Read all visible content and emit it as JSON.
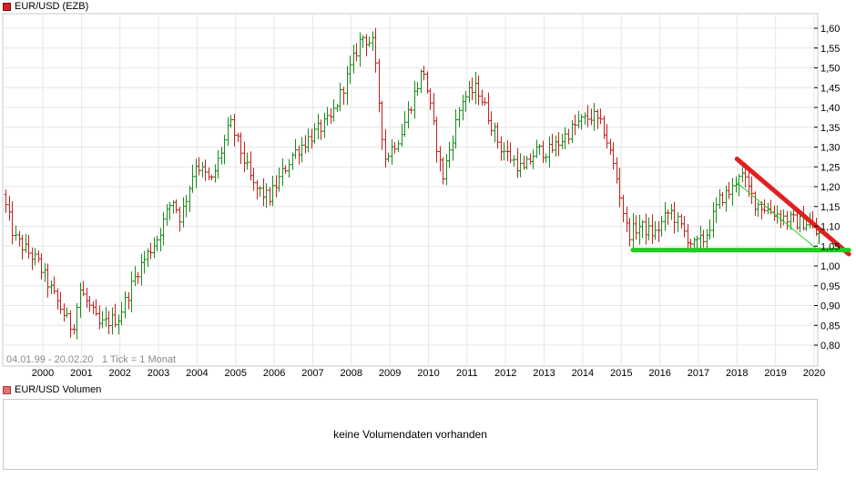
{
  "legend": {
    "price_label": "EUR/USD (EZB)",
    "volume_label": "EUR/USD Volumen"
  },
  "info": {
    "range_text": "04.01.99 - 20.02.20",
    "tick_text": "1 Tick = 1 Monat"
  },
  "volume": {
    "message": "keine Volumendaten vorhanden"
  },
  "colors": {
    "up": "#1a8c1a",
    "down": "#c81e1e",
    "trend_down": "#e02020",
    "trend_support": "#22cc22",
    "grid": "#e6e6e6",
    "frame": "#c8c8c8"
  },
  "chart_data": {
    "type": "ohlc",
    "title": "EUR/USD (EZB)",
    "interval": "monthly",
    "x_ticks": [
      "2000",
      "2001",
      "2002",
      "2003",
      "2004",
      "2005",
      "2006",
      "2007",
      "2008",
      "2009",
      "2010",
      "2011",
      "2012",
      "2013",
      "2014",
      "2015",
      "2016",
      "2017",
      "2018",
      "2019",
      "2020"
    ],
    "y_ticks": [
      "0,80",
      "0,85",
      "0,90",
      "0,95",
      "1,00",
      "1,05",
      "1,10",
      "1,15",
      "1,20",
      "1,25",
      "1,30",
      "1,35",
      "1,40",
      "1,45",
      "1,50",
      "1,55",
      "1,60"
    ],
    "ylim": [
      0.77,
      1.63
    ],
    "xlim": [
      1999.0,
      2020.2
    ],
    "keypoints": [
      [
        1999.0,
        1.18
      ],
      [
        1999.3,
        1.07
      ],
      [
        1999.9,
        1.01
      ],
      [
        2000.3,
        0.93
      ],
      [
        2000.8,
        0.84
      ],
      [
        2001.0,
        0.94
      ],
      [
        2001.5,
        0.85
      ],
      [
        2002.0,
        0.87
      ],
      [
        2002.5,
        0.99
      ],
      [
        2003.0,
        1.07
      ],
      [
        2003.4,
        1.17
      ],
      [
        2003.6,
        1.12
      ],
      [
        2004.0,
        1.26
      ],
      [
        2004.4,
        1.21
      ],
      [
        2004.9,
        1.36
      ],
      [
        2005.5,
        1.2
      ],
      [
        2005.9,
        1.17
      ],
      [
        2006.5,
        1.28
      ],
      [
        2006.9,
        1.32
      ],
      [
        2007.5,
        1.37
      ],
      [
        2007.9,
        1.47
      ],
      [
        2008.3,
        1.58
      ],
      [
        2008.6,
        1.56
      ],
      [
        2008.9,
        1.27
      ],
      [
        2009.3,
        1.33
      ],
      [
        2009.9,
        1.5
      ],
      [
        2010.4,
        1.22
      ],
      [
        2010.9,
        1.42
      ],
      [
        2011.3,
        1.45
      ],
      [
        2011.9,
        1.3
      ],
      [
        2012.5,
        1.24
      ],
      [
        2012.8,
        1.29
      ],
      [
        2013.2,
        1.29
      ],
      [
        2013.9,
        1.36
      ],
      [
        2014.3,
        1.38
      ],
      [
        2014.6,
        1.34
      ],
      [
        2014.9,
        1.23
      ],
      [
        2015.2,
        1.08
      ],
      [
        2015.5,
        1.1
      ],
      [
        2015.9,
        1.08
      ],
      [
        2016.3,
        1.14
      ],
      [
        2016.9,
        1.05
      ],
      [
        2017.2,
        1.07
      ],
      [
        2017.6,
        1.17
      ],
      [
        2017.9,
        1.19
      ],
      [
        2018.1,
        1.24
      ],
      [
        2018.5,
        1.16
      ],
      [
        2018.9,
        1.14
      ],
      [
        2019.3,
        1.12
      ],
      [
        2019.6,
        1.11
      ],
      [
        2019.9,
        1.11
      ],
      [
        2020.1,
        1.08
      ]
    ],
    "trendlines": [
      {
        "name": "resistance",
        "color": "red",
        "from": [
          2018.0,
          1.27
        ],
        "to": [
          2020.9,
          1.03
        ]
      },
      {
        "name": "support",
        "color": "green",
        "from": [
          2015.3,
          1.04
        ],
        "to": [
          2020.9,
          1.04
        ]
      },
      {
        "name": "thin-channel",
        "color": "green",
        "from": [
          2018.0,
          1.21
        ],
        "to": [
          2020.1,
          1.04
        ]
      }
    ]
  }
}
